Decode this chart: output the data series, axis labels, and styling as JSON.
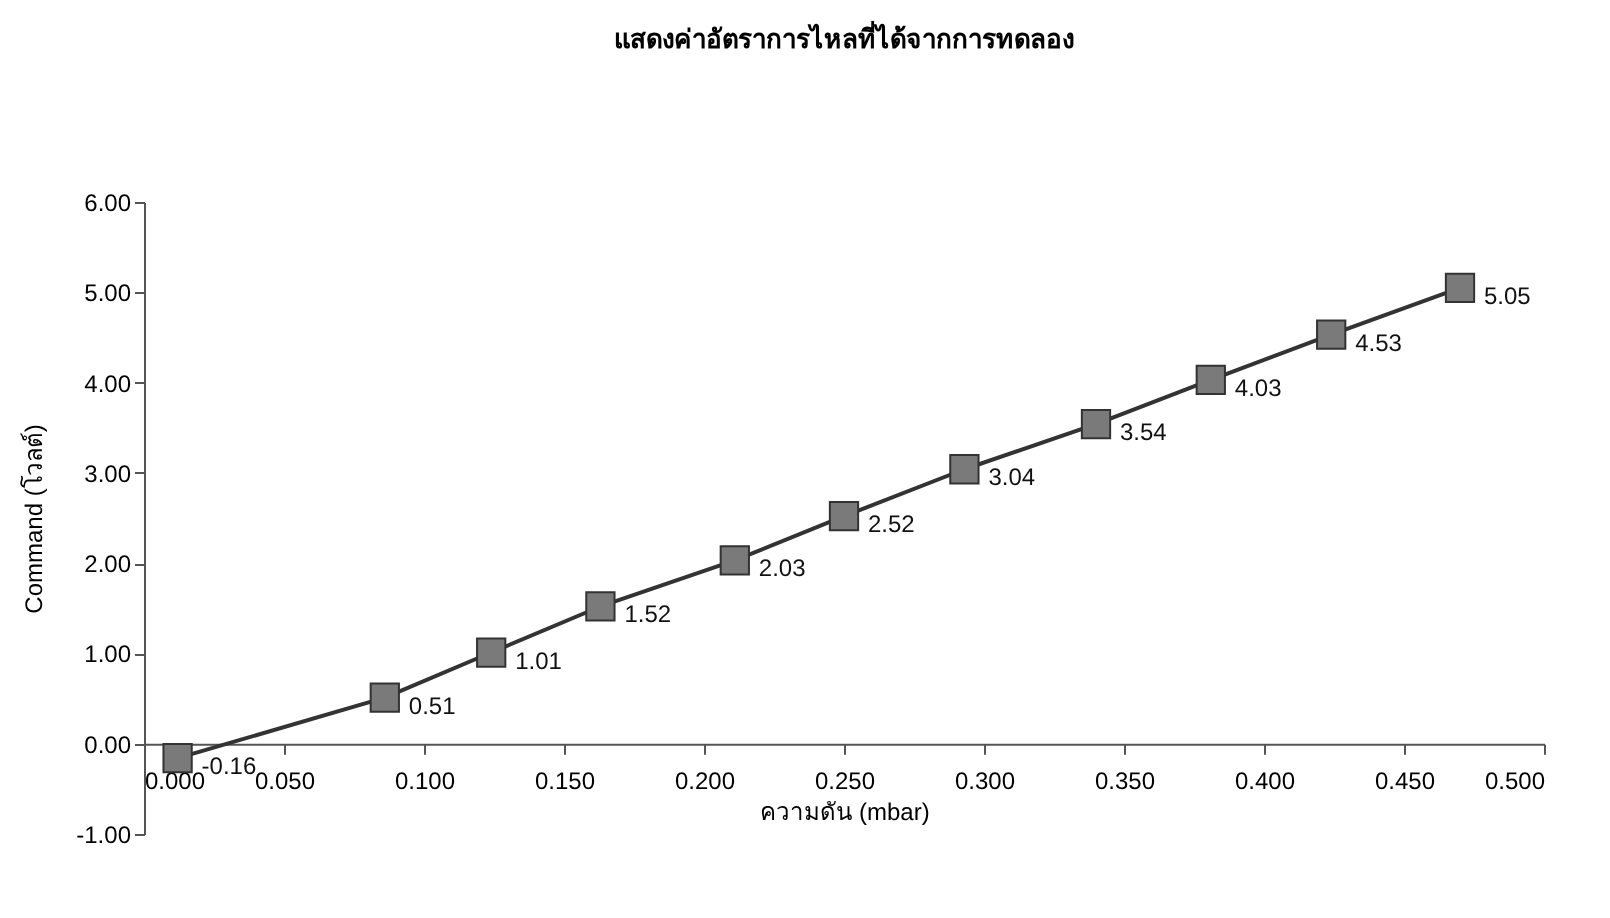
{
  "chart_data": {
    "type": "line",
    "title": "แสดงค่าอัตราการไหลที่ได้จากการทดลอง",
    "xlabel": "ความดัน (mbar)",
    "ylabel": "Command (โวลต์)",
    "x": [
      0.012,
      0.086,
      0.124,
      0.163,
      0.211,
      0.25,
      0.293,
      0.34,
      0.381,
      0.424,
      0.47
    ],
    "series": [
      {
        "color": "#333333",
        "values": [
          -0.16,
          0.51,
          1.01,
          1.52,
          2.03,
          2.52,
          3.04,
          3.54,
          4.03,
          4.53,
          5.05
        ]
      }
    ],
    "xlim": [
      0,
      0.5
    ],
    "xticks": [
      {
        "value": 0,
        "label": "0.000"
      },
      {
        "value": 0.05,
        "label": "0.050"
      },
      {
        "value": 0.1,
        "label": "0.100"
      },
      {
        "value": 0.15,
        "label": "0.150"
      },
      {
        "value": 0.2,
        "label": "0.200"
      },
      {
        "value": 0.25,
        "label": "0.250"
      },
      {
        "value": 0.3,
        "label": "0.300"
      },
      {
        "value": 0.35,
        "label": "0.350"
      },
      {
        "value": 0.4,
        "label": "0.400"
      },
      {
        "value": 0.45,
        "label": "0.450"
      },
      {
        "value": 0.5,
        "label": "0.500"
      }
    ],
    "ylim": [
      -1,
      6
    ],
    "yticks": [
      {
        "value": -1,
        "label": "-1.00"
      },
      {
        "value": 0,
        "label": "0.00"
      },
      {
        "value": 1,
        "label": "1.00"
      },
      {
        "value": 2,
        "label": "2.00"
      },
      {
        "value": 3,
        "label": "3.00"
      },
      {
        "value": 4,
        "label": "4.00"
      },
      {
        "value": 5,
        "label": "5.00"
      },
      {
        "value": 6,
        "label": "6.00"
      }
    ],
    "marker": "square",
    "line_style": "solid",
    "data_labels": true
  }
}
